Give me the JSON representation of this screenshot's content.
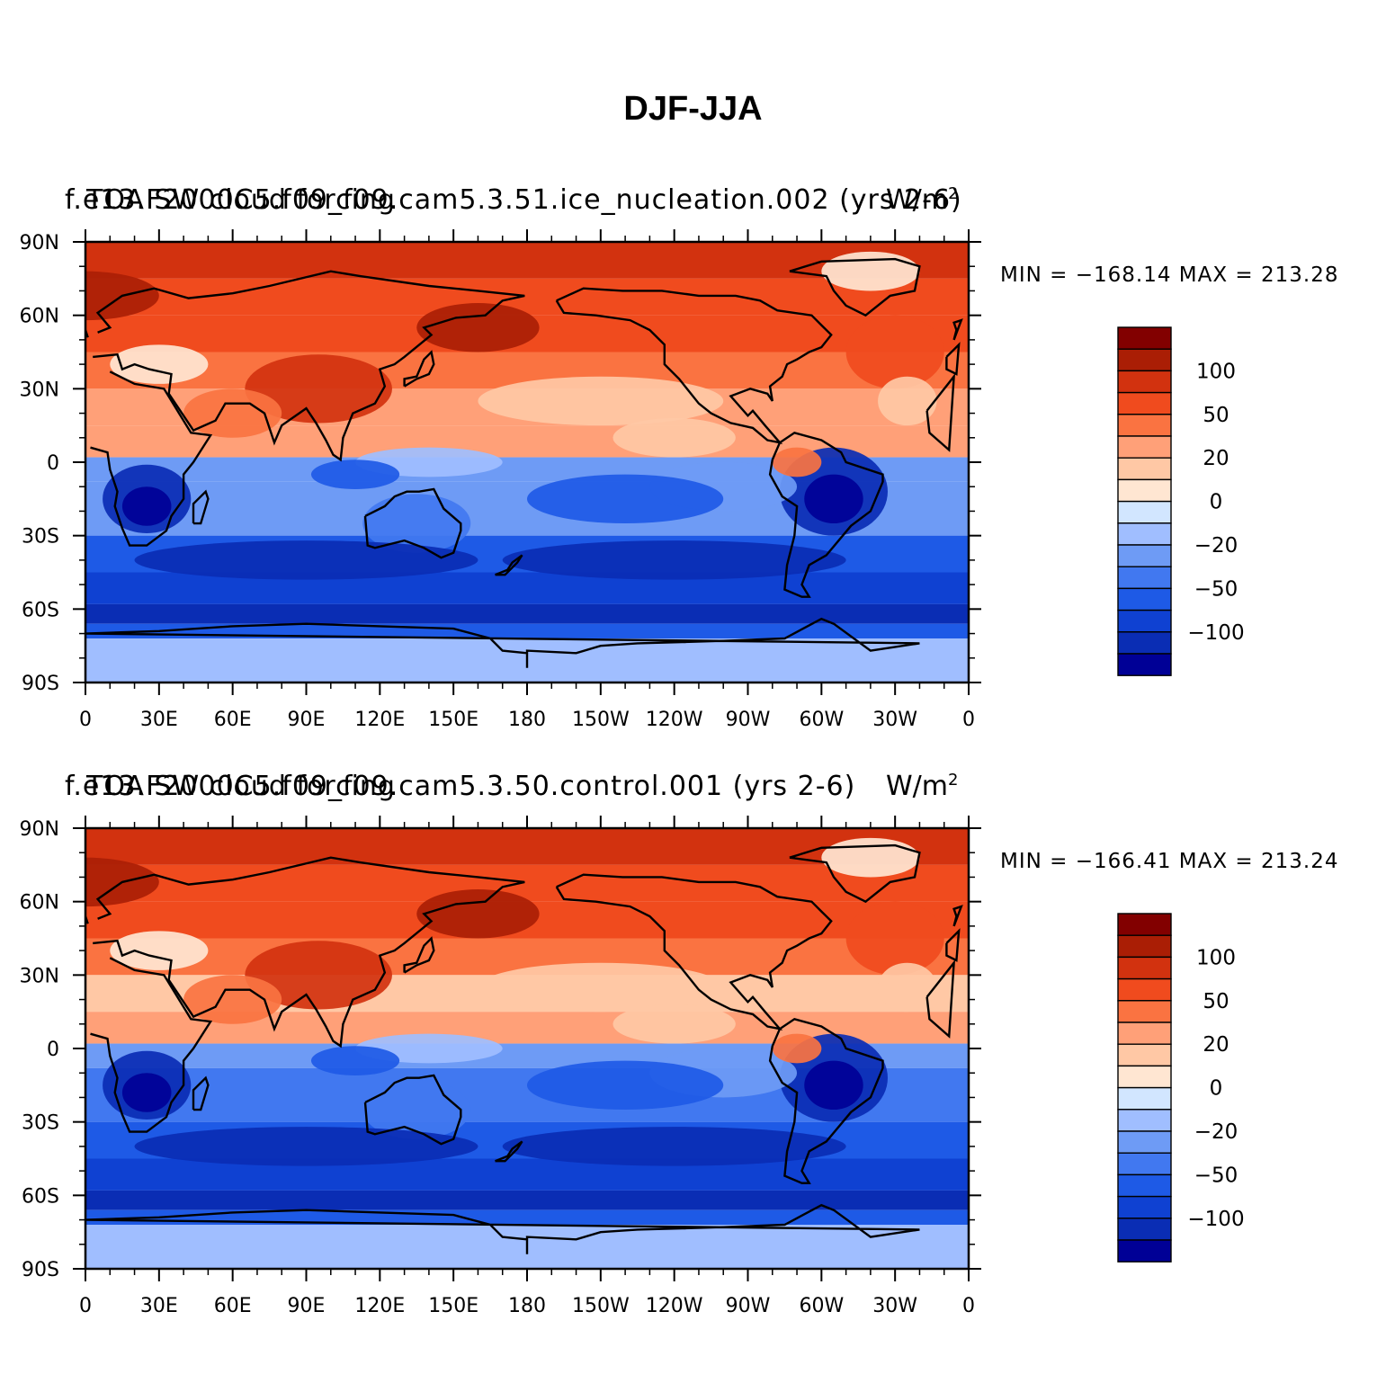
{
  "title": "DJF-JJA",
  "colors": {
    "levels": [
      "#000096",
      "#0a2db4",
      "#0f41d2",
      "#1e5ae6",
      "#4178f0",
      "#6e9bf5",
      "#a0beff",
      "#d2e6ff",
      "#ffe6d2",
      "#ffc8a5",
      "#ffa078",
      "#fa7341",
      "#f04b1e",
      "#d2320f",
      "#aa1e05",
      "#820000"
    ],
    "coastline": "#000000"
  },
  "panels": [
    {
      "title_a": "f.e13.F2000C5.f09_f09.cam5.3.51.ice_nucleation.002 (yrs 2-6)",
      "title_b": "TOA SW cloud forcing",
      "unit": "W/m",
      "unit_sup": "2",
      "minmax": "MIN = −168.14  MAX = 213.28"
    },
    {
      "title_a": "f.e13.F2000C5.f09_f09.cam5.3.50.control.001 (yrs 2-6)",
      "title_b": "TOA SW cloud forcing",
      "unit": "W/m",
      "unit_sup": "2",
      "minmax": "MIN = −166.41  MAX = 213.24"
    }
  ],
  "colorbar_labels": [
    "100",
    "50",
    "20",
    "0",
    "−20",
    "−50",
    "−100"
  ],
  "lat_labels": [
    "90N",
    "60N",
    "30N",
    "0",
    "30S",
    "60S",
    "90S"
  ],
  "lon_labels": [
    "0",
    "30E",
    "60E",
    "90E",
    "120E",
    "150E",
    "180",
    "150W",
    "120W",
    "90W",
    "60W",
    "30W",
    "0"
  ],
  "chart_data": [
    {
      "type": "heatmap",
      "title": "f.e13.F2000C5.f09_f09.cam5.3.51.ice_nucleation.002 (yrs 2-6)",
      "variable": "TOA SW cloud forcing",
      "units": "W/m2",
      "min": -168.14,
      "max": 213.28,
      "xlabels": [
        "0",
        "30E",
        "60E",
        "90E",
        "120E",
        "150E",
        "180",
        "150W",
        "120W",
        "90W",
        "60W",
        "30W",
        "0"
      ],
      "ylabels": [
        "90N",
        "60N",
        "30N",
        "0",
        "30S",
        "60S",
        "90S"
      ],
      "colorbar_ticks": [
        "100",
        "50",
        "20",
        "0",
        "−20",
        "−50",
        "−100"
      ],
      "zones": [
        {
          "lat_band": "60N-90N",
          "value": 80
        },
        {
          "lat_band": "30N-60N",
          "value": 70
        },
        {
          "lat_band": "0-30N",
          "value": 25
        },
        {
          "lat_band": "0-30S",
          "value": -30
        },
        {
          "lat_band": "30S-60S",
          "value": -90
        },
        {
          "lat_band": "60S-90S",
          "value": -15
        }
      ]
    },
    {
      "type": "heatmap",
      "title": "f.e13.F2000C5.f09_f09.cam5.3.50.control.001 (yrs 2-6)",
      "variable": "TOA SW cloud forcing",
      "units": "W/m2",
      "min": -166.41,
      "max": 213.24,
      "xlabels": [
        "0",
        "30E",
        "60E",
        "90E",
        "120E",
        "150E",
        "180",
        "150W",
        "120W",
        "90W",
        "60W",
        "30W",
        "0"
      ],
      "ylabels": [
        "90N",
        "60N",
        "30N",
        "0",
        "30S",
        "60S",
        "90S"
      ],
      "colorbar_ticks": [
        "100",
        "50",
        "20",
        "0",
        "−20",
        "−50",
        "−100"
      ],
      "zones": [
        {
          "lat_band": "60N-90N",
          "value": 80
        },
        {
          "lat_band": "30N-60N",
          "value": 70
        },
        {
          "lat_band": "0-30N",
          "value": 20
        },
        {
          "lat_band": "0-30S",
          "value": -35
        },
        {
          "lat_band": "30S-60S",
          "value": -90
        },
        {
          "lat_band": "60S-90S",
          "value": -15
        }
      ]
    }
  ]
}
